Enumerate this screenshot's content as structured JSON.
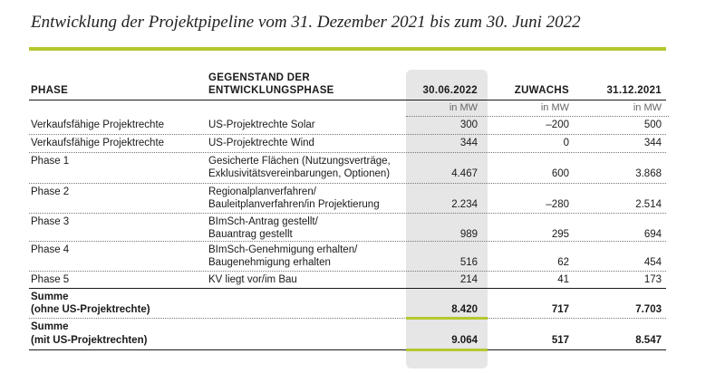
{
  "title": "Entwicklung der Projektpipeline vom 31. Dezember 2021 bis zum 30. Juni 2022",
  "headers": {
    "phase": "PHASE",
    "gegenstand_line1": "GEGENSTAND DER",
    "gegenstand_line2": "ENTWICKLUNGSPHASE",
    "col_2022": "30.06.2022",
    "zuwachs": "ZUWACHS",
    "col_2021": "31.12.2021",
    "unit": "in MW"
  },
  "rows": [
    {
      "phase": "Verkaufsfähige Projektrechte",
      "desc1": "US-Projektrechte Solar",
      "desc2": "",
      "v2022": "300",
      "zuwachs": "–200",
      "v2021": "500"
    },
    {
      "phase": "Verkaufsfähige Projektrechte",
      "desc1": "US-Projektrechte Wind",
      "desc2": "",
      "v2022": "344",
      "zuwachs": "0",
      "v2021": "344"
    },
    {
      "phase": "Phase 1",
      "desc1": "Gesicherte Flächen (Nutzungsverträge,",
      "desc2": "Exklusivitätsvereinbarungen, Optionen)",
      "v2022": "4.467",
      "zuwachs": "600",
      "v2021": "3.868"
    },
    {
      "phase": "Phase 2",
      "desc1": "Regionalplanverfahren/",
      "desc2": "Bauleitplanverfahren/in Projektierung",
      "v2022": "2.234",
      "zuwachs": "–280",
      "v2021": "2.514"
    },
    {
      "phase": "Phase 3",
      "desc1": "BImSch-Antrag gestellt/",
      "desc2": "Bauantrag gestellt",
      "v2022": "989",
      "zuwachs": "295",
      "v2021": "694"
    },
    {
      "phase": "Phase 4",
      "desc1": "BImSch-Genehmigung erhalten/",
      "desc2": "Baugenehmigung erhalten",
      "v2022": "516",
      "zuwachs": "62",
      "v2021": "454"
    },
    {
      "phase": "Phase 5",
      "desc1": "KV liegt vor/im Bau",
      "desc2": "",
      "v2022": "214",
      "zuwachs": "41",
      "v2021": "173"
    }
  ],
  "sums": [
    {
      "label1": "Summe",
      "label2": "(ohne US-Projektrechte)",
      "v2022": "8.420",
      "zuwachs": "717",
      "v2021": "7.703"
    },
    {
      "label1": "Summe",
      "label2": "(mit US-Projektrechten)",
      "v2022": "9.064",
      "zuwachs": "517",
      "v2021": "8.547"
    }
  ],
  "colors": {
    "accent_green": "#b6c72e",
    "highlight_gray": "#e6e6e6"
  }
}
